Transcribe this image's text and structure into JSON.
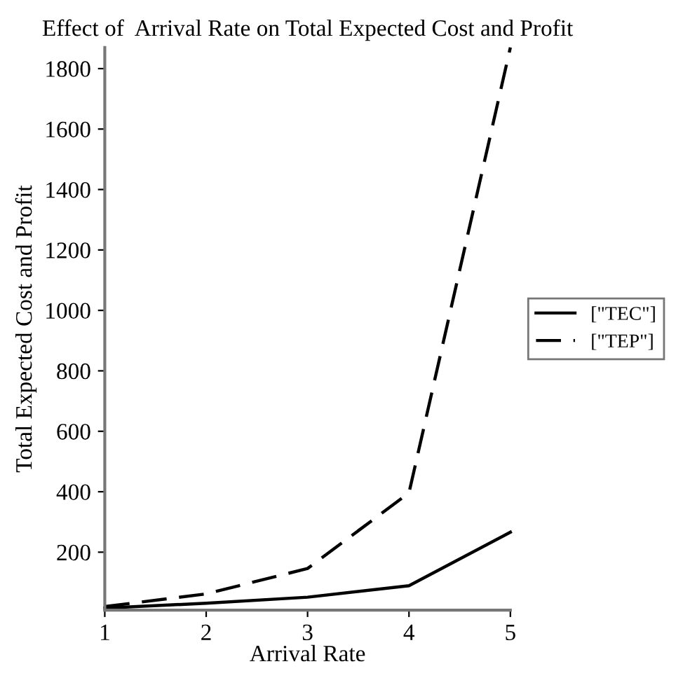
{
  "chart_data": {
    "type": "line",
    "title": "Effect of  Arrival Rate on Total Expected Cost and Profit",
    "xlabel": "Arrival Rate",
    "ylabel": "Total Expected Cost and Profit",
    "x": [
      1,
      2,
      3,
      4,
      5
    ],
    "series": [
      {
        "name": "[\"TEC\"]",
        "color": "#000000",
        "line_style": "solid",
        "values": [
          15,
          31,
          51,
          89,
          266
        ]
      },
      {
        "name": "[\"TEP\"]",
        "color": "#000000",
        "line_style": "dashed",
        "values": [
          20,
          62,
          146,
          396,
          1870
        ]
      }
    ],
    "xlim": [
      1,
      5
    ],
    "xticks": [
      1,
      2,
      3,
      4,
      5
    ],
    "ylim": [
      8,
      1870
    ],
    "yticks": [
      200,
      400,
      600,
      800,
      1000,
      1200,
      1400,
      1600,
      1800
    ],
    "grid": false,
    "legend": "right",
    "marker": "none"
  }
}
